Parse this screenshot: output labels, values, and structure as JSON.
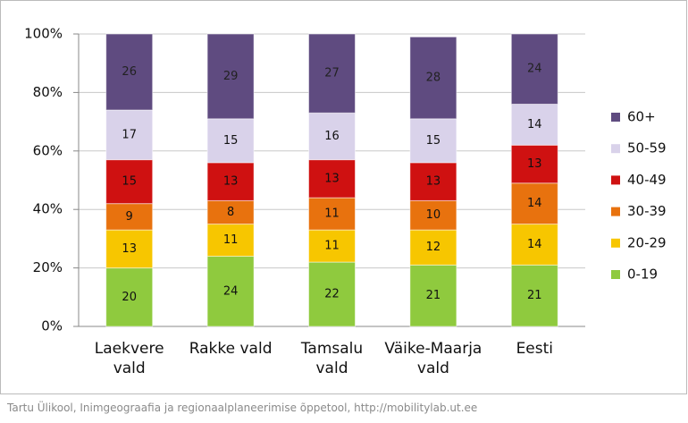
{
  "chart_data": {
    "type": "stacked_bar",
    "categories": [
      "Laekvere vald",
      "Rakke vald",
      "Tamsalu vald",
      "Väike-Maarja vald",
      "Eesti"
    ],
    "series": [
      {
        "name": "0-19",
        "color": "#8fca3e",
        "values": [
          20,
          24,
          22,
          21,
          21
        ]
      },
      {
        "name": "20-29",
        "color": "#f7c600",
        "values": [
          13,
          11,
          11,
          12,
          14
        ]
      },
      {
        "name": "30-39",
        "color": "#e8720e",
        "values": [
          9,
          8,
          11,
          10,
          14
        ]
      },
      {
        "name": "40-49",
        "color": "#cf1111",
        "values": [
          15,
          13,
          13,
          13,
          13
        ]
      },
      {
        "name": "50-59",
        "color": "#d9d2ea",
        "values": [
          17,
          15,
          16,
          15,
          14
        ]
      },
      {
        "name": "60+",
        "color": "#5f4b80",
        "values": [
          26,
          29,
          27,
          28,
          24
        ]
      }
    ],
    "ylim": [
      0,
      100
    ],
    "yticks": [
      {
        "value": 0,
        "label": "0%"
      },
      {
        "value": 20,
        "label": "20%"
      },
      {
        "value": 40,
        "label": "40%"
      },
      {
        "value": 60,
        "label": "60%"
      },
      {
        "value": 80,
        "label": "80%"
      },
      {
        "value": 100,
        "label": "100%"
      }
    ],
    "grid": true,
    "legend": "right",
    "source": "Tartu Ülikool, Inimgeograafia ja regionaalplaneerimise õppetool, http://mobilitylab.ut.ee"
  }
}
